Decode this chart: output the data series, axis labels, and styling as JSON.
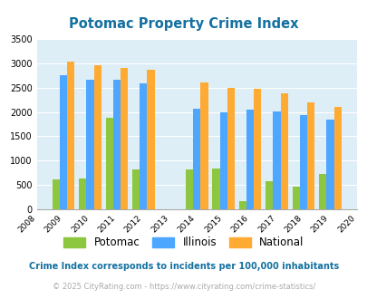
{
  "title": "Potomac Property Crime Index",
  "all_years": [
    2008,
    2009,
    2010,
    2011,
    2012,
    2013,
    2014,
    2015,
    2016,
    2017,
    2018,
    2019,
    2020
  ],
  "data_years": [
    2009,
    2010,
    2011,
    2012,
    2014,
    2015,
    2016,
    2017,
    2018,
    2019
  ],
  "potomac": [
    620,
    640,
    1880,
    820,
    820,
    840,
    160,
    570,
    460,
    720
  ],
  "illinois": [
    2750,
    2670,
    2670,
    2590,
    2060,
    1990,
    2050,
    2010,
    1940,
    1840
  ],
  "national": [
    3040,
    2960,
    2910,
    2870,
    2600,
    2500,
    2480,
    2390,
    2200,
    2110
  ],
  "potomac_color": "#8dc63f",
  "illinois_color": "#4da6ff",
  "national_color": "#ffaa33",
  "bg_color": "#ddeef6",
  "ylim": [
    0,
    3500
  ],
  "yticks": [
    0,
    500,
    1000,
    1500,
    2000,
    2500,
    3000,
    3500
  ],
  "title_color": "#1470a0",
  "footnote1": "Crime Index corresponds to incidents per 100,000 inhabitants",
  "footnote2": "© 2025 CityRating.com - https://www.cityrating.com/crime-statistics/",
  "footnote1_color": "#1470a0",
  "footnote2_color": "#aaaaaa",
  "bar_width": 0.28
}
